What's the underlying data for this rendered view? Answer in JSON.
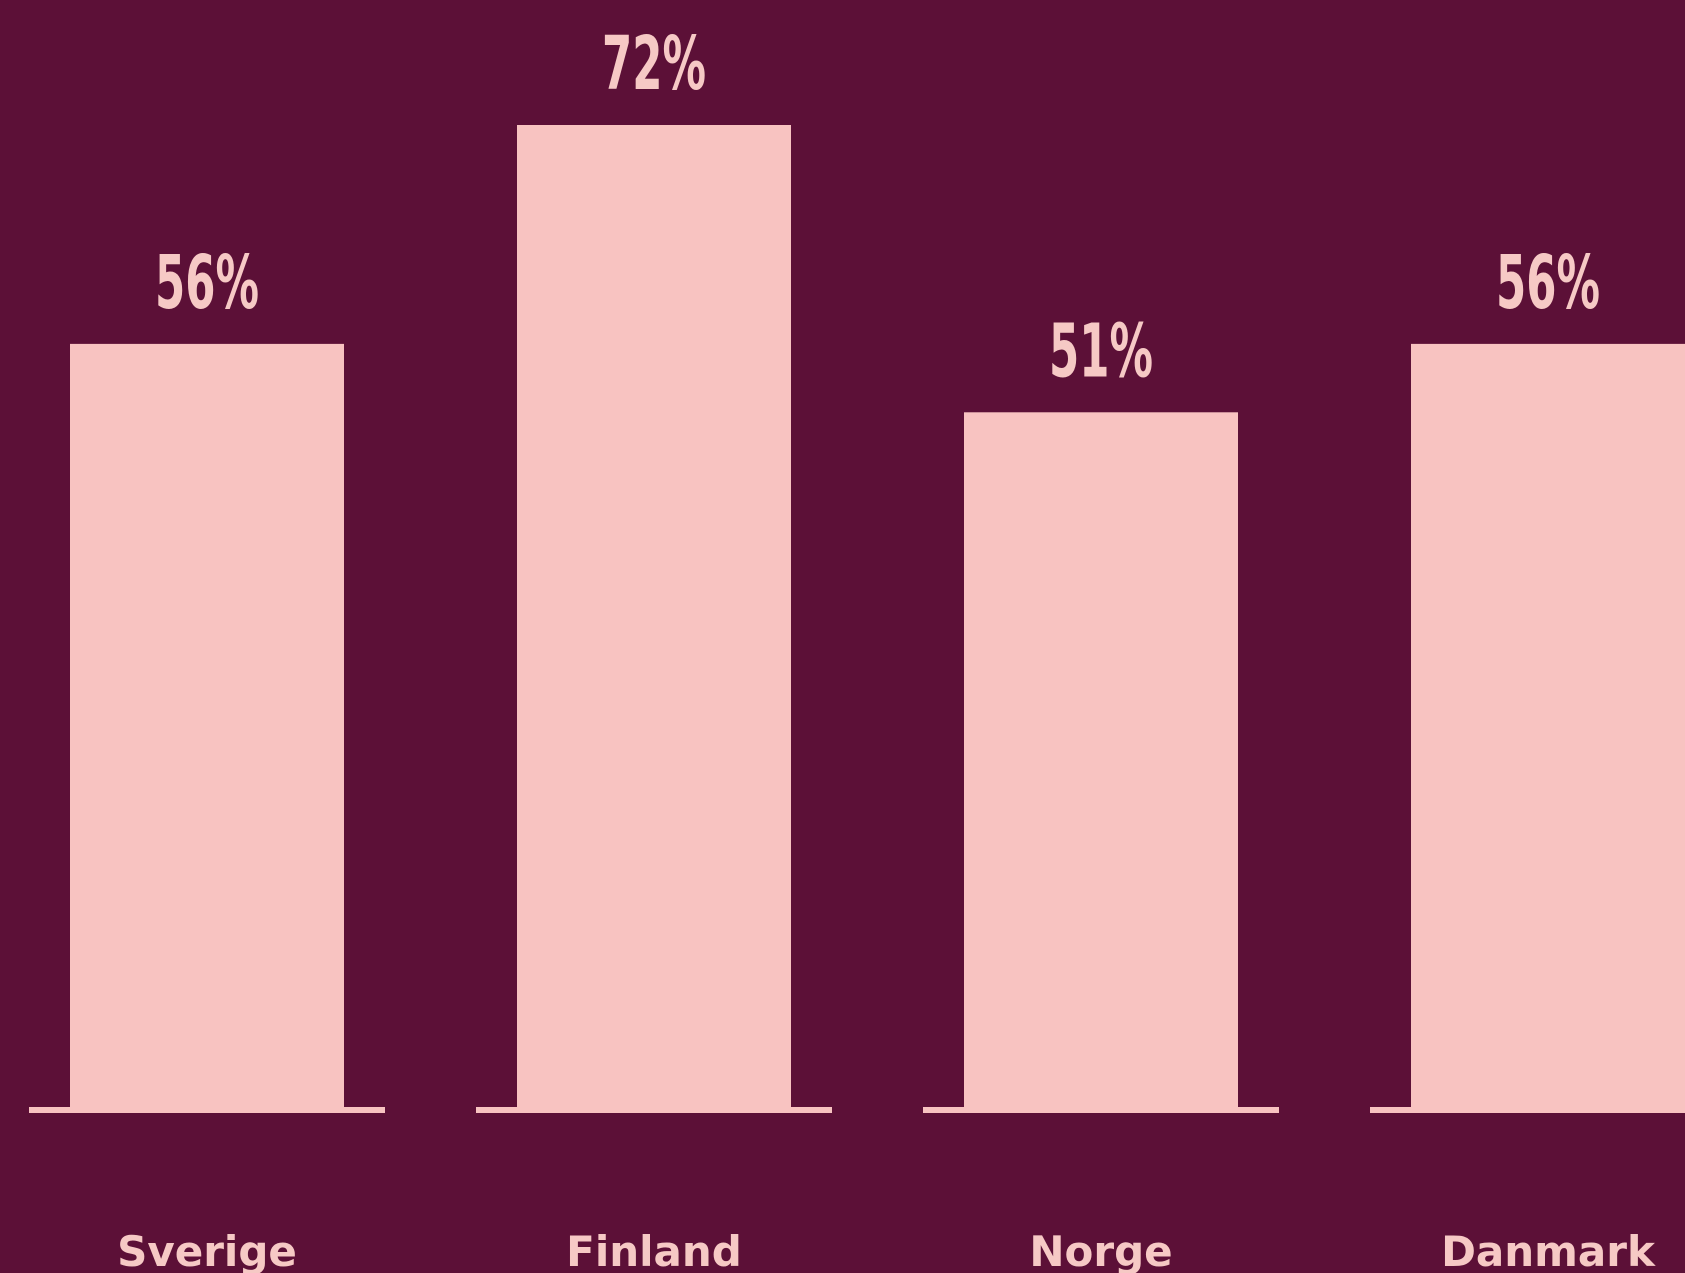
{
  "chart_data": {
    "type": "bar",
    "categories": [
      "Sverige",
      "Finland",
      "Norge",
      "Danmark"
    ],
    "values": [
      56,
      72,
      51,
      56
    ],
    "value_labels": [
      "56%",
      "72%",
      "51%",
      "56%"
    ],
    "color": "#f8c3c1"
  }
}
